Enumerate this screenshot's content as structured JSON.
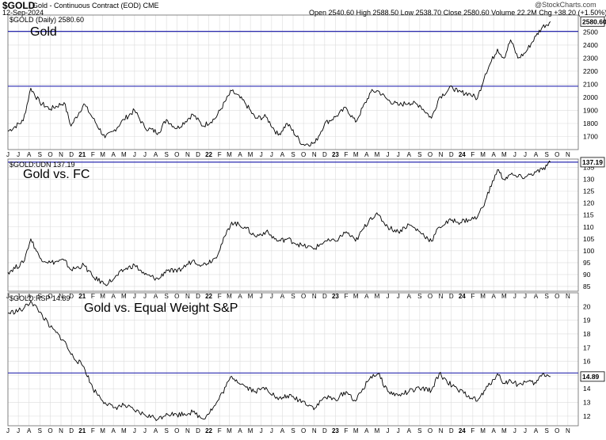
{
  "header": {
    "ticker": "$GOLD",
    "name": "Gold - Continuous Contract (EOD) CME",
    "date": "12-Sep-2024",
    "quote": "Open 2540.60  High 2588.50  Low 2538.70  Close 2580.60  Volume 22.2M  Chg +38.20 (+1.50%)",
    "logo": "@StockCharts.com"
  },
  "chart_data": [
    {
      "type": "line",
      "label": "$GOLD (Daily) 2580.60",
      "title": "Gold",
      "last_value": "2580.60",
      "ylim": [
        1600,
        2630
      ],
      "yticks": [
        1700,
        1800,
        1900,
        2000,
        2100,
        2200,
        2300,
        2400,
        2500
      ],
      "hlines": [
        2085,
        2505
      ],
      "x": [
        "2020-06-01",
        "2020-07-15",
        "2020-08-06",
        "2020-09-01",
        "2020-10-01",
        "2020-11-10",
        "2020-11-30",
        "2021-01-06",
        "2021-02-01",
        "2021-03-08",
        "2021-04-01",
        "2021-05-01",
        "2021-06-01",
        "2021-06-30",
        "2021-08-09",
        "2021-09-01",
        "2021-10-01",
        "2021-11-16",
        "2021-12-15",
        "2022-01-20",
        "2022-03-08",
        "2022-04-15",
        "2022-05-15",
        "2022-06-15",
        "2022-07-20",
        "2022-08-15",
        "2022-09-28",
        "2022-11-03",
        "2022-12-01",
        "2023-01-01",
        "2023-02-01",
        "2023-02-28",
        "2023-04-13",
        "2023-05-04",
        "2023-06-01",
        "2023-07-01",
        "2023-08-01",
        "2023-09-01",
        "2023-10-05",
        "2023-10-27",
        "2023-12-04",
        "2023-12-20",
        "2024-01-20",
        "2024-02-14",
        "2024-03-08",
        "2024-04-12",
        "2024-05-01",
        "2024-05-20",
        "2024-06-10",
        "2024-07-01",
        "2024-08-01",
        "2024-08-20",
        "2024-09-12"
      ],
      "values": [
        1740,
        1820,
        2070,
        1960,
        1910,
        1960,
        1780,
        1950,
        1840,
        1690,
        1740,
        1830,
        1900,
        1770,
        1730,
        1830,
        1760,
        1870,
        1780,
        1840,
        2050,
        1960,
        1840,
        1850,
        1710,
        1800,
        1640,
        1650,
        1800,
        1850,
        1920,
        1810,
        2040,
        2050,
        1980,
        1940,
        1960,
        1940,
        1840,
        2000,
        2080,
        2040,
        2030,
        1990,
        2180,
        2370,
        2300,
        2440,
        2300,
        2340,
        2470,
        2540,
        2580
      ]
    },
    {
      "type": "line",
      "label": "$GOLD:UDN 137.19",
      "title": "Gold vs. FC",
      "last_value": "137.19",
      "ylim": [
        83,
        138.5
      ],
      "yticks": [
        85,
        90,
        95,
        100,
        105,
        110,
        115,
        120,
        125,
        130,
        135
      ],
      "hlines": [
        137.2
      ],
      "x": [
        "2020-06-01",
        "2020-07-15",
        "2020-08-06",
        "2020-09-01",
        "2020-10-01",
        "2020-11-10",
        "2020-11-30",
        "2021-01-06",
        "2021-02-01",
        "2021-03-08",
        "2021-04-01",
        "2021-05-01",
        "2021-06-01",
        "2021-06-30",
        "2021-08-09",
        "2021-09-01",
        "2021-10-01",
        "2021-11-16",
        "2021-12-15",
        "2022-01-20",
        "2022-03-08",
        "2022-04-15",
        "2022-05-15",
        "2022-06-15",
        "2022-07-20",
        "2022-08-15",
        "2022-09-28",
        "2022-11-03",
        "2022-12-01",
        "2023-01-01",
        "2023-02-01",
        "2023-02-28",
        "2023-04-13",
        "2023-05-04",
        "2023-06-01",
        "2023-07-01",
        "2023-08-01",
        "2023-09-01",
        "2023-10-05",
        "2023-10-27",
        "2023-12-04",
        "2023-12-20",
        "2024-01-20",
        "2024-02-14",
        "2024-03-08",
        "2024-04-12",
        "2024-05-01",
        "2024-05-20",
        "2024-06-10",
        "2024-07-01",
        "2024-08-01",
        "2024-08-20",
        "2024-09-12"
      ],
      "values": [
        91,
        95,
        105,
        97,
        95,
        96,
        92,
        94,
        89,
        86,
        88,
        92,
        94,
        90,
        88,
        92,
        91,
        96,
        94,
        97,
        112,
        110,
        106,
        108,
        104,
        105,
        102,
        101,
        104,
        104,
        108,
        104,
        114,
        115,
        110,
        108,
        111,
        108,
        104,
        110,
        113,
        112,
        113,
        114,
        121,
        134,
        130,
        132,
        131,
        131,
        133,
        134,
        137.19
      ]
    },
    {
      "type": "line",
      "label": "$GOLD:RSP 14.89",
      "title": "Gold vs. Equal Weight S&P",
      "last_value": "14.89",
      "ylim": [
        11.3,
        21
      ],
      "yticks": [
        12,
        13,
        14,
        15,
        16,
        17,
        18,
        19,
        20
      ],
      "hlines": [
        15.15
      ],
      "x": [
        "2020-06-01",
        "2020-07-15",
        "2020-08-06",
        "2020-09-01",
        "2020-10-01",
        "2020-11-10",
        "2020-11-30",
        "2021-01-06",
        "2021-02-01",
        "2021-03-08",
        "2021-04-01",
        "2021-05-01",
        "2021-06-01",
        "2021-06-30",
        "2021-08-09",
        "2021-09-01",
        "2021-10-01",
        "2021-11-16",
        "2021-12-15",
        "2022-01-20",
        "2022-03-08",
        "2022-04-15",
        "2022-05-15",
        "2022-06-15",
        "2022-07-20",
        "2022-08-15",
        "2022-09-28",
        "2022-11-03",
        "2022-12-01",
        "2023-01-01",
        "2023-02-01",
        "2023-02-28",
        "2023-04-13",
        "2023-05-04",
        "2023-06-01",
        "2023-07-01",
        "2023-08-01",
        "2023-09-01",
        "2023-10-05",
        "2023-10-27",
        "2023-12-04",
        "2023-12-20",
        "2024-01-20",
        "2024-02-14",
        "2024-03-08",
        "2024-04-12",
        "2024-05-01",
        "2024-05-20",
        "2024-06-10",
        "2024-07-01",
        "2024-08-01",
        "2024-08-20",
        "2024-09-12"
      ],
      "values": [
        19.5,
        19.8,
        20.4,
        19.6,
        18.5,
        17.5,
        16.5,
        15.6,
        14,
        13,
        12.6,
        12.8,
        12.4,
        12.1,
        11.8,
        12.2,
        12.1,
        12.3,
        11.8,
        12.8,
        14.9,
        14.2,
        13.8,
        14.1,
        13.2,
        13.5,
        13.1,
        12.6,
        13.4,
        13.2,
        13.8,
        13.1,
        14.9,
        15.1,
        13.8,
        13.5,
        13.8,
        14,
        13.9,
        15.1,
        14.2,
        13.9,
        13.5,
        13.1,
        13.9,
        15.1,
        14.4,
        14.6,
        14.3,
        14.5,
        14.4,
        15.1,
        14.89
      ]
    }
  ],
  "x_axis": {
    "labels": [
      "J",
      "J",
      "A",
      "S",
      "O",
      "N",
      "D",
      "21",
      "F",
      "M",
      "A",
      "M",
      "J",
      "J",
      "A",
      "S",
      "O",
      "N",
      "D",
      "22",
      "F",
      "M",
      "A",
      "M",
      "J",
      "J",
      "A",
      "S",
      "O",
      "N",
      "D",
      "23",
      "F",
      "M",
      "A",
      "M",
      "J",
      "J",
      "A",
      "S",
      "O",
      "N",
      "D",
      "24",
      "F",
      "M",
      "A",
      "M",
      "J",
      "J",
      "A",
      "S",
      "O",
      "N"
    ],
    "year_labels": [
      "21",
      "22",
      "23",
      "24"
    ]
  },
  "style": {
    "line_color": "#000000",
    "hline_color": "#2b2bb0",
    "grid_color": "#dcdcdc",
    "border_color": "#666666"
  }
}
